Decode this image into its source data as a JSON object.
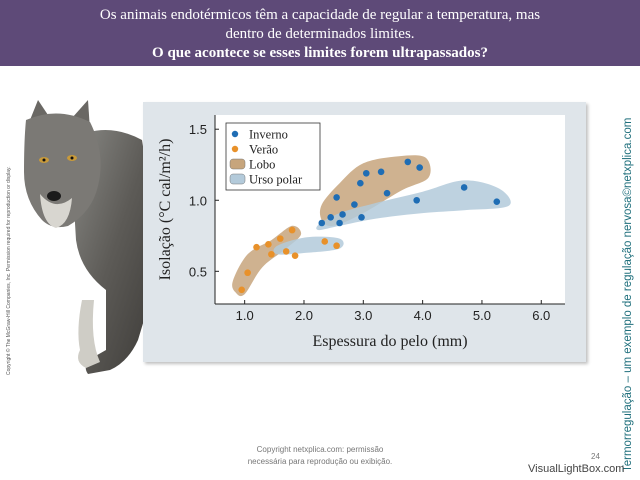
{
  "header": {
    "line1": "Os animais endotérmicos têm a capacidade de regular a temperatura, mas",
    "line2": "dentro de determinados limites.",
    "line3": "O que acontece se esses limites forem ultrapassados?"
  },
  "side_title": "Termorregulação – um exemplo de regulação nervosa©netxplica.com",
  "copyright_vertical": "Copyright © The McGraw-Hill Companies, Inc. Permission required for reproduction or display.",
  "footer": {
    "line1": "Copyright netxplica.com: permissão",
    "line2": "necessária para reprodução ou exibição.",
    "page_number": "24"
  },
  "watermark": "VisualLightBox.com",
  "colors": {
    "banner": "#5e4a78",
    "winter": "#1f6db4",
    "summer": "#e8912a",
    "wolf_region": "#c7a57c",
    "polar_bear_region": "#b3cada",
    "side_title": "#1f6f7c"
  },
  "chart_data": {
    "type": "scatter",
    "xlabel": "Espessura do pelo (mm)",
    "ylabel": "Isolação (°C cal/m²/h)",
    "xlim": [
      0.5,
      6.4
    ],
    "ylim": [
      0.27,
      1.6
    ],
    "xticks": [
      "1.0",
      "2.0",
      "3.0",
      "4.0",
      "5.0",
      "6.0"
    ],
    "yticks": [
      "0.5",
      "1.0",
      "1.5"
    ],
    "legend_position": "top-left",
    "legend": [
      {
        "label": "Inverno",
        "kind": "point",
        "color": "#1f6db4"
      },
      {
        "label": "Verão",
        "kind": "point",
        "color": "#e8912a"
      },
      {
        "label": "Lobo",
        "kind": "region",
        "color": "#c7a57c"
      },
      {
        "label": "Urso polar",
        "kind": "region",
        "color": "#b3cada"
      }
    ],
    "series": [
      {
        "name": "Inverno",
        "color": "#1f6db4",
        "points": [
          [
            2.3,
            0.84
          ],
          [
            2.45,
            0.88
          ],
          [
            2.55,
            1.02
          ],
          [
            2.6,
            0.84
          ],
          [
            2.65,
            0.9
          ],
          [
            2.85,
            0.97
          ],
          [
            2.95,
            1.12
          ],
          [
            2.97,
            0.88
          ],
          [
            3.05,
            1.19
          ],
          [
            3.3,
            1.2
          ],
          [
            3.4,
            1.05
          ],
          [
            3.75,
            1.27
          ],
          [
            3.9,
            1.0
          ],
          [
            3.95,
            1.23
          ],
          [
            4.7,
            1.09
          ],
          [
            5.25,
            0.99
          ]
        ]
      },
      {
        "name": "Verão",
        "color": "#e8912a",
        "points": [
          [
            0.95,
            0.37
          ],
          [
            1.05,
            0.49
          ],
          [
            1.2,
            0.67
          ],
          [
            1.4,
            0.69
          ],
          [
            1.45,
            0.62
          ],
          [
            1.6,
            0.73
          ],
          [
            1.7,
            0.64
          ],
          [
            1.8,
            0.79
          ],
          [
            1.85,
            0.61
          ],
          [
            2.35,
            0.71
          ],
          [
            2.55,
            0.68
          ]
        ]
      }
    ],
    "regions": [
      {
        "name": "Lobo",
        "color": "#c7a57c",
        "outline": [
          [
            0.8,
            0.43
          ],
          [
            1.05,
            0.62
          ],
          [
            1.45,
            0.72
          ],
          [
            1.8,
            0.82
          ],
          [
            1.95,
            0.76
          ],
          [
            1.7,
            0.66
          ],
          [
            1.3,
            0.53
          ],
          [
            1.0,
            0.34
          ],
          [
            0.85,
            0.35
          ]
        ]
      },
      {
        "name": "Lobo",
        "color": "#c7a57c",
        "outline": [
          [
            2.3,
            0.97
          ],
          [
            2.6,
            1.12
          ],
          [
            3.0,
            1.26
          ],
          [
            3.6,
            1.31
          ],
          [
            4.05,
            1.3
          ],
          [
            4.1,
            1.16
          ],
          [
            3.65,
            1.07
          ],
          [
            3.0,
            0.91
          ],
          [
            2.5,
            0.82
          ],
          [
            2.3,
            0.86
          ]
        ]
      },
      {
        "name": "Urso polar",
        "color": "#b3cada",
        "outline": [
          [
            1.55,
            0.68
          ],
          [
            2.05,
            0.74
          ],
          [
            2.6,
            0.73
          ],
          [
            2.6,
            0.66
          ],
          [
            2.05,
            0.63
          ],
          [
            1.55,
            0.62
          ]
        ]
      },
      {
        "name": "Urso polar",
        "color": "#b3cada",
        "outline": [
          [
            2.25,
            0.83
          ],
          [
            2.6,
            0.91
          ],
          [
            3.2,
            0.98
          ],
          [
            4.0,
            1.06
          ],
          [
            4.7,
            1.14
          ],
          [
            5.3,
            1.08
          ],
          [
            5.45,
            0.96
          ],
          [
            4.7,
            0.93
          ],
          [
            4.0,
            0.91
          ],
          [
            3.2,
            0.87
          ],
          [
            2.6,
            0.82
          ],
          [
            2.25,
            0.79
          ]
        ]
      }
    ]
  }
}
